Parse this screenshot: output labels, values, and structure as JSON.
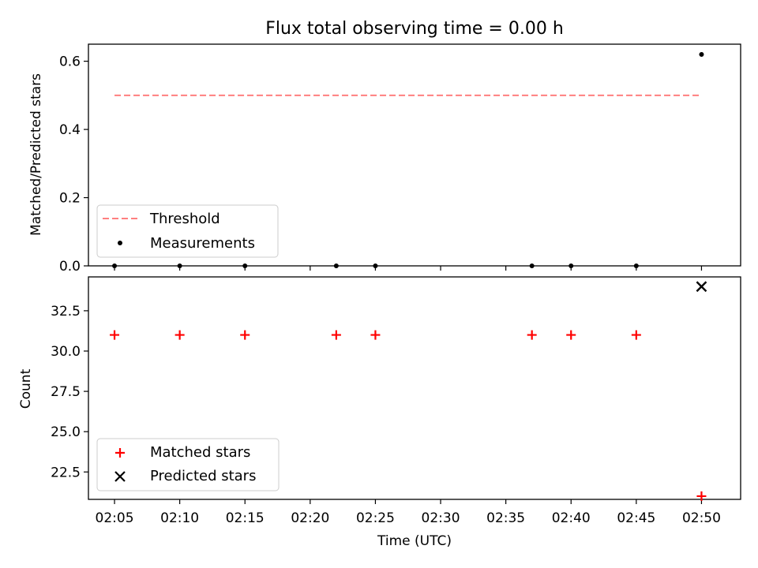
{
  "chart_data": [
    {
      "type": "scatter",
      "title": "Flux total observing time = 0.00 h",
      "xlabel": "",
      "ylabel": "Matched/Predicted stars",
      "xlim": [
        "02:03",
        "02:53"
      ],
      "ylim": [
        0,
        0.65
      ],
      "yticks": [
        0.0,
        0.2,
        0.4,
        0.6
      ],
      "ytick_labels": [
        "0.0",
        "0.2",
        "0.4",
        "0.6"
      ],
      "grid": false,
      "legend_position": "lower-left",
      "threshold": {
        "name": "Threshold",
        "value": 0.5,
        "x": [
          "02:05",
          "02:50"
        ],
        "color": "#ff7f7f",
        "style": "dashed"
      },
      "series": [
        {
          "name": "Measurements",
          "color": "#000000",
          "marker": "dot",
          "x": [
            "02:05",
            "02:10",
            "02:15",
            "02:22",
            "02:25",
            "02:37",
            "02:40",
            "02:45",
            "02:50"
          ],
          "y": [
            0.0,
            0.0,
            0.0,
            0.0,
            0.0,
            0.0,
            0.0,
            0.0,
            0.62
          ]
        }
      ]
    },
    {
      "type": "scatter",
      "title": "",
      "xlabel": "Time (UTC)",
      "ylabel": "Count",
      "xlim": [
        "02:03",
        "02:53"
      ],
      "ylim": [
        20.8,
        34.6
      ],
      "xticks": [
        "02:05",
        "02:10",
        "02:15",
        "02:20",
        "02:25",
        "02:30",
        "02:35",
        "02:40",
        "02:45",
        "02:50"
      ],
      "yticks": [
        22.5,
        25.0,
        27.5,
        30.0,
        32.5
      ],
      "ytick_labels": [
        "22.5",
        "25.0",
        "27.5",
        "30.0",
        "32.5"
      ],
      "grid": false,
      "legend_position": "lower-left",
      "series": [
        {
          "name": "Matched stars",
          "color": "#ff0000",
          "marker": "plus",
          "x": [
            "02:05",
            "02:10",
            "02:15",
            "02:22",
            "02:25",
            "02:37",
            "02:40",
            "02:45",
            "02:50"
          ],
          "y": [
            31,
            31,
            31,
            31,
            31,
            31,
            31,
            31,
            21
          ]
        },
        {
          "name": "Predicted stars",
          "color": "#000000",
          "marker": "x",
          "x": [
            "02:50"
          ],
          "y": [
            34
          ]
        }
      ]
    }
  ]
}
